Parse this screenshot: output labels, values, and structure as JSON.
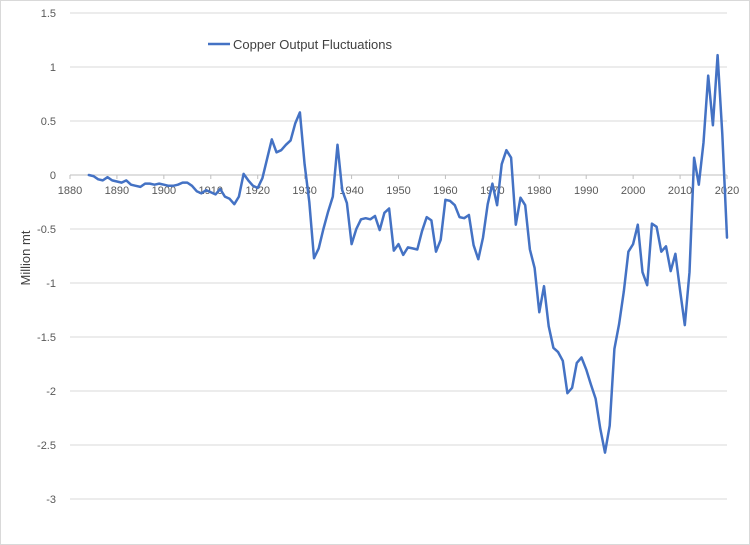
{
  "chart_data": {
    "type": "line",
    "title": "",
    "xlabel": "",
    "ylabel": "Million mt",
    "xlim": [
      1880,
      2020
    ],
    "ylim": [
      -3,
      1.5
    ],
    "x_ticks": [
      "1880",
      "1890",
      "1900",
      "1910",
      "1920",
      "1930",
      "1940",
      "1950",
      "1960",
      "1970",
      "1980",
      "1990",
      "2000",
      "2010",
      "2020"
    ],
    "y_ticks": [
      "1.5",
      "1",
      "0.5",
      "0",
      "-0.5",
      "-1",
      "-1.5",
      "-2",
      "-2.5",
      "-3"
    ],
    "grid": "horizontal",
    "legend_position": "top-left",
    "series": [
      {
        "name": "Copper Output Fluctuations",
        "color": "#4472c4",
        "x": [
          1884,
          1885,
          1886,
          1887,
          1888,
          1889,
          1890,
          1891,
          1892,
          1893,
          1894,
          1895,
          1896,
          1897,
          1898,
          1899,
          1900,
          1901,
          1902,
          1903,
          1904,
          1905,
          1906,
          1907,
          1908,
          1909,
          1910,
          1911,
          1912,
          1913,
          1914,
          1915,
          1916,
          1917,
          1918,
          1919,
          1920,
          1921,
          1922,
          1923,
          1924,
          1925,
          1926,
          1927,
          1928,
          1929,
          1930,
          1931,
          1932,
          1933,
          1934,
          1935,
          1936,
          1937,
          1938,
          1939,
          1940,
          1941,
          1942,
          1943,
          1944,
          1945,
          1946,
          1947,
          1948,
          1949,
          1950,
          1951,
          1952,
          1953,
          1954,
          1955,
          1956,
          1957,
          1958,
          1959,
          1960,
          1961,
          1962,
          1963,
          1964,
          1965,
          1966,
          1967,
          1968,
          1969,
          1970,
          1971,
          1972,
          1973,
          1974,
          1975,
          1976,
          1977,
          1978,
          1979,
          1980,
          1981,
          1982,
          1983,
          1984,
          1985,
          1986,
          1987,
          1988,
          1989,
          1990,
          1991,
          1992,
          1993,
          1994,
          1995,
          1996,
          1997,
          1998,
          1999,
          2000,
          2001,
          2002,
          2003,
          2004,
          2005,
          2006,
          2007,
          2008,
          2009,
          2010,
          2011,
          2012,
          2013,
          2014,
          2015,
          2016,
          2017,
          2018,
          2019,
          2020
        ],
        "values": [
          0,
          -0.01,
          -0.04,
          -0.05,
          -0.02,
          -0.05,
          -0.06,
          -0.07,
          -0.05,
          -0.09,
          -0.1,
          -0.11,
          -0.08,
          -0.08,
          -0.09,
          -0.08,
          -0.09,
          -0.1,
          -0.1,
          -0.09,
          -0.07,
          -0.07,
          -0.1,
          -0.15,
          -0.17,
          -0.14,
          -0.16,
          -0.18,
          -0.13,
          -0.2,
          -0.22,
          -0.27,
          -0.2,
          0.01,
          -0.05,
          -0.1,
          -0.12,
          -0.03,
          0.15,
          0.33,
          0.21,
          0.23,
          0.28,
          0.32,
          0.48,
          0.58,
          0.1,
          -0.25,
          -0.77,
          -0.68,
          -0.5,
          -0.34,
          -0.2,
          0.28,
          -0.14,
          -0.26,
          -0.64,
          -0.5,
          -0.41,
          -0.4,
          -0.41,
          -0.38,
          -0.51,
          -0.35,
          -0.31,
          -0.7,
          -0.64,
          -0.74,
          -0.67,
          -0.68,
          -0.69,
          -0.52,
          -0.39,
          -0.42,
          -0.71,
          -0.6,
          -0.23,
          -0.24,
          -0.28,
          -0.39,
          -0.4,
          -0.37,
          -0.65,
          -0.78,
          -0.58,
          -0.27,
          -0.08,
          -0.28,
          0.1,
          0.23,
          0.16,
          -0.46,
          -0.21,
          -0.28,
          -0.69,
          -0.86,
          -1.27,
          -1.03,
          -1.4,
          -1.6,
          -1.64,
          -1.72,
          -2.02,
          -1.97,
          -1.74,
          -1.69,
          -1.8,
          -1.94,
          -2.07,
          -2.35,
          -2.57,
          -2.32,
          -1.61,
          -1.38,
          -1.08,
          -0.71,
          -0.64,
          -0.46,
          -0.9,
          -1.02,
          -0.45,
          -0.48,
          -0.71,
          -0.66,
          -0.89,
          -0.73,
          -1.07,
          -1.39,
          -0.9,
          0.16,
          -0.09,
          0.3,
          0.92,
          0.46,
          1.11,
          0.38,
          -0.58
        ]
      }
    ]
  }
}
